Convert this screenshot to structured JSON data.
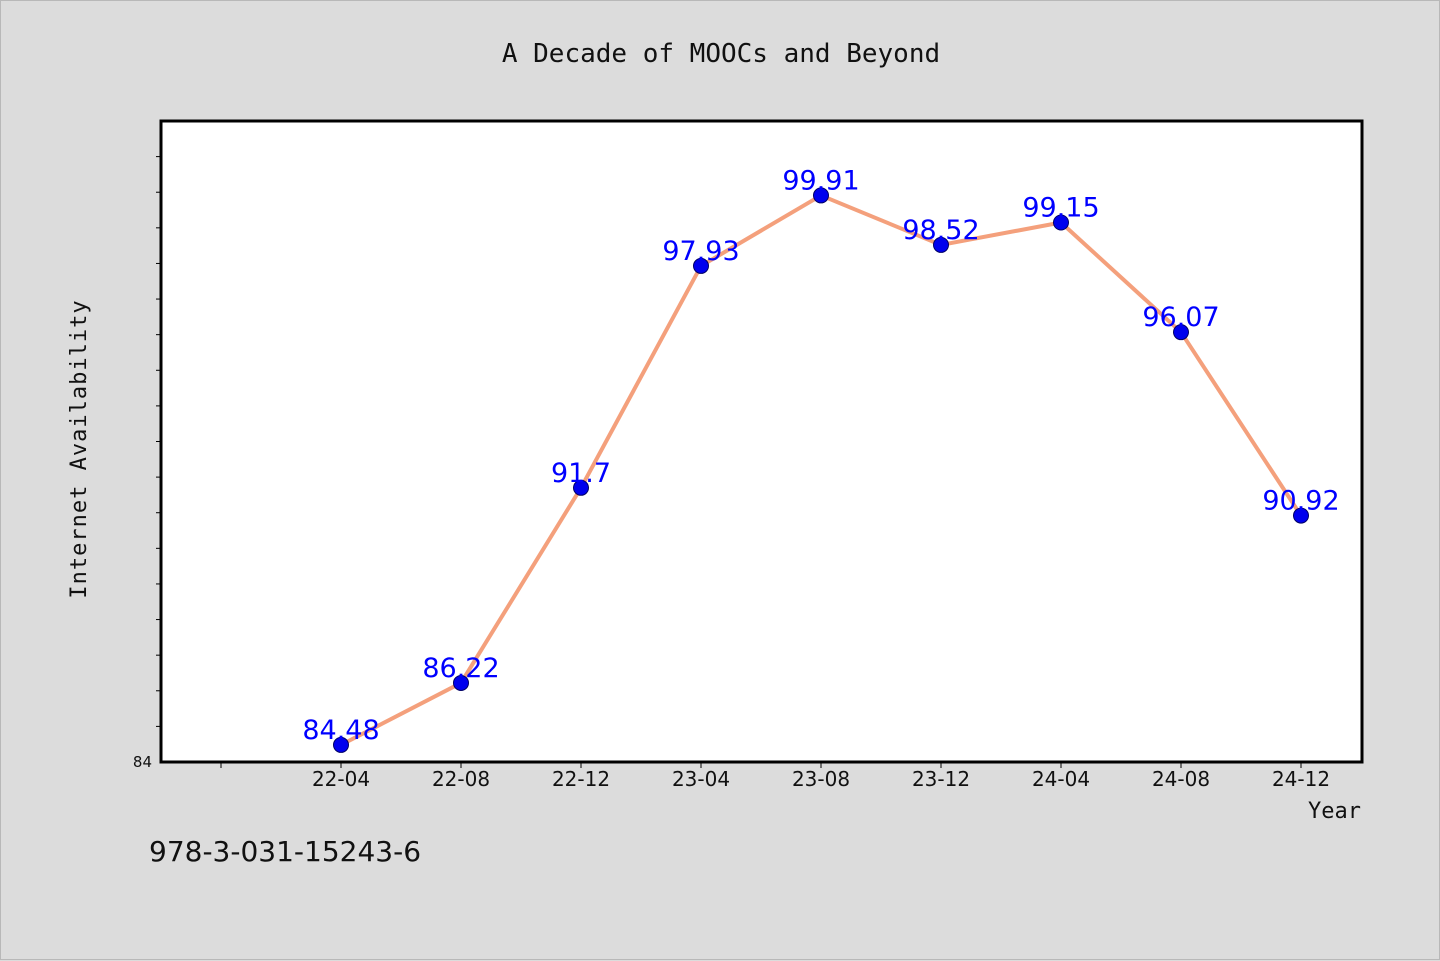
{
  "chart_data": {
    "type": "line",
    "title": "A Decade of MOOCs and Beyond",
    "xlabel": "Year",
    "ylabel": "Internet Availability",
    "categories": [
      "22-04",
      "22-08",
      "22-12",
      "23-04",
      "23-08",
      "23-12",
      "24-04",
      "24-08",
      "24-12"
    ],
    "series": [
      {
        "values": [
          84.48,
          86.22,
          91.7,
          97.93,
          99.91,
          98.52,
          99.15,
          96.07,
          90.92
        ],
        "labels": [
          "84.48",
          "86.22",
          "91.7",
          "97.93",
          "99.91",
          "98.52",
          "99.15",
          "96.07",
          "90.92"
        ]
      }
    ],
    "y_tick_labels": [
      "84"
    ],
    "ylim": [
      84,
      102
    ],
    "grid": false,
    "legend": "none",
    "colors": {
      "line": "#f4a07c",
      "marker": "#0000ee",
      "marker_edge": "#000066",
      "data_label": "#0000ff",
      "plot_bg": "#ffffff",
      "figure_bg": "#dcdcdc"
    }
  },
  "footnote": "978-3-031-15243-6"
}
